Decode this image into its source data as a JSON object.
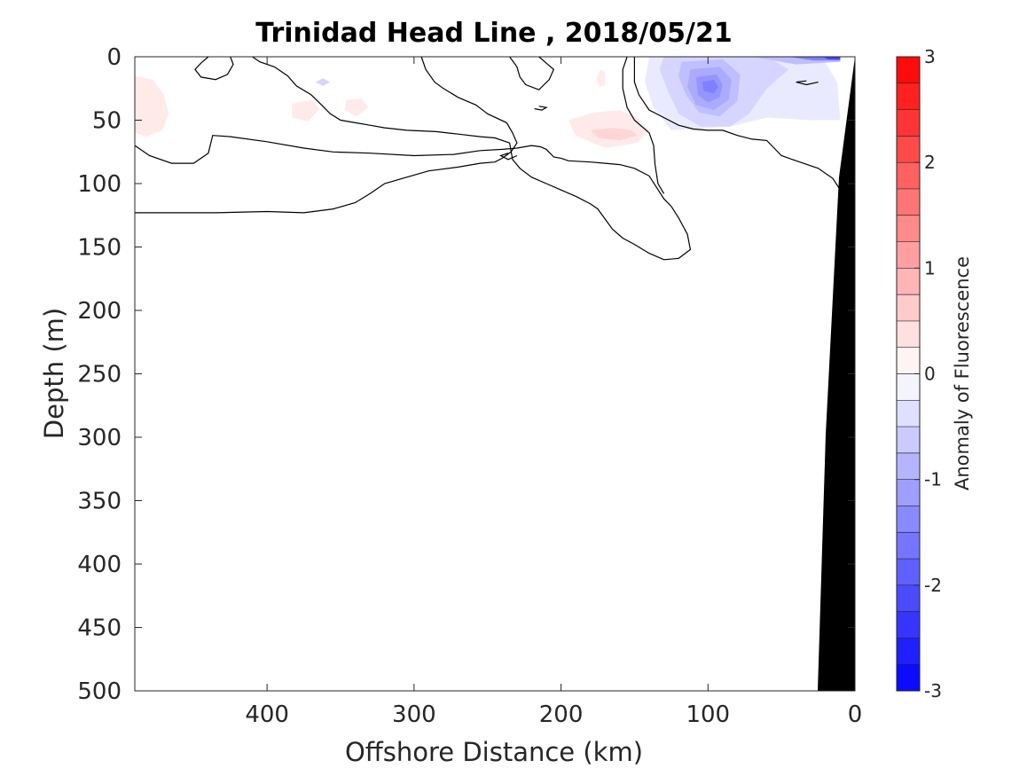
{
  "chart_data": {
    "type": "contour",
    "title": "Trinidad Head Line , 2018/05/21",
    "xlabel": "Offshore Distance (km)",
    "ylabel": "Depth (m)",
    "xlim": [
      490,
      0
    ],
    "ylim": [
      0,
      500
    ],
    "x_reversed": true,
    "y_reversed": true,
    "xticks": [
      400,
      300,
      200,
      100,
      0
    ],
    "yticks": [
      0,
      50,
      100,
      150,
      200,
      250,
      300,
      350,
      400,
      450,
      500
    ],
    "colorbar": {
      "label": "Anomaly of Fluorescence",
      "range": [
        -3,
        3
      ],
      "level_step": 0.25,
      "ticks": [
        3,
        2,
        1,
        0,
        -1,
        -2,
        -3
      ],
      "low_color": "#0000ff",
      "mid_color": "#ffffff",
      "high_color": "#ff0000"
    },
    "features": [
      {
        "name": "negative-anomaly-core",
        "x": 100,
        "depth": 23,
        "value": -1.5
      },
      {
        "name": "negative-anomaly-surface",
        "x": 20,
        "depth": 2,
        "value": -2.5
      },
      {
        "name": "positive-anomaly-core",
        "x": 160,
        "depth": 60,
        "value": 0.5
      },
      {
        "name": "positive-anomaly-offshore",
        "x": 480,
        "depth": 45,
        "value": 0.25
      }
    ],
    "bathymetry_color": "#000000",
    "grid": false
  }
}
